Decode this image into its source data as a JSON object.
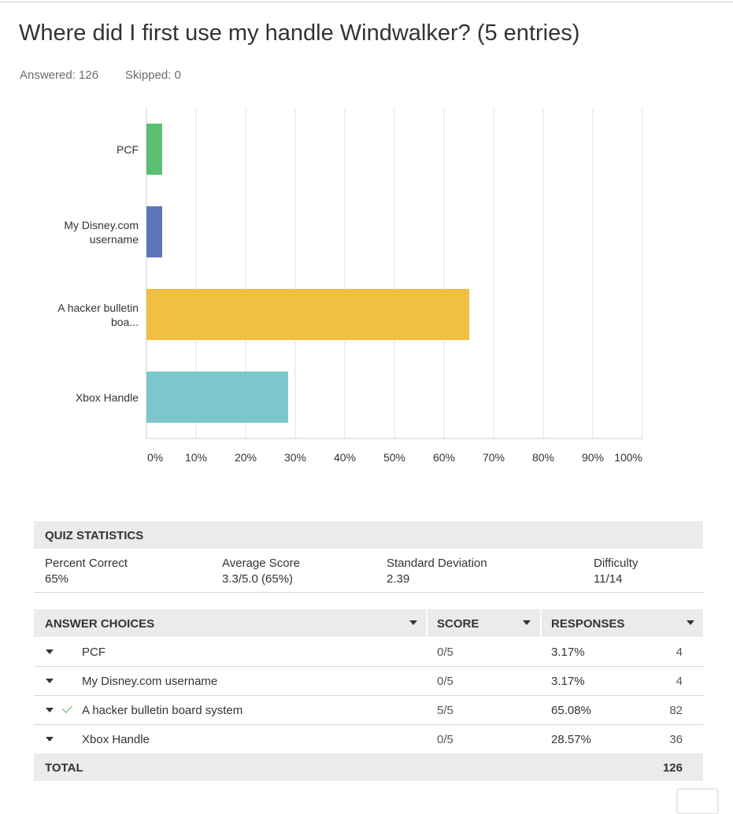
{
  "header": {
    "title": "Where did I first use my handle Windwalker? (5 entries)",
    "answered": "Answered: 126",
    "skipped": "Skipped: 0"
  },
  "chart_data": {
    "type": "hbar",
    "categories": [
      "PCF",
      "My Disney.com username",
      "A hacker bulletin boa...",
      "Xbox Handle"
    ],
    "values": [
      3.17,
      3.17,
      65.08,
      28.57
    ],
    "colors": [
      "#5bbf72",
      "#5a78b5",
      "#f0bf43",
      "#7ec6cb"
    ],
    "xlim": [
      0,
      100
    ],
    "xticks": [
      {
        "value": 0,
        "label": "0%"
      },
      {
        "value": 10,
        "label": "10%"
      },
      {
        "value": 20,
        "label": "20%"
      },
      {
        "value": 30,
        "label": "30%"
      },
      {
        "value": 40,
        "label": "40%"
      },
      {
        "value": 50,
        "label": "50%"
      },
      {
        "value": 60,
        "label": "60%"
      },
      {
        "value": 70,
        "label": "70%"
      },
      {
        "value": 80,
        "label": "80%"
      },
      {
        "value": 90,
        "label": "90%"
      },
      {
        "value": 100,
        "label": "100%"
      }
    ],
    "grid": true
  },
  "quiz_statistics": {
    "title": "QUIZ STATISTICS",
    "stats": [
      {
        "label": "Percent Correct",
        "value": "65%"
      },
      {
        "label": "Average Score",
        "value": "3.3/5.0 (65%)"
      },
      {
        "label": "Standard Deviation",
        "value": "2.39"
      },
      {
        "label": "Difficulty",
        "value": "11/14"
      }
    ]
  },
  "answer_table": {
    "headers": [
      "ANSWER CHOICES",
      "SCORE",
      "RESPONSES"
    ],
    "rows": [
      {
        "choice": "PCF",
        "score": "0/5",
        "percent": "3.17%",
        "count": 4,
        "correct": false
      },
      {
        "choice": "My Disney.com username",
        "score": "0/5",
        "percent": "3.17%",
        "count": 4,
        "correct": false
      },
      {
        "choice": "A hacker bulletin board system",
        "score": "5/5",
        "percent": "65.08%",
        "count": 82,
        "correct": true
      },
      {
        "choice": "Xbox Handle",
        "score": "0/5",
        "percent": "28.57%",
        "count": 36,
        "correct": false
      }
    ],
    "total_label": "TOTAL",
    "total": 126
  }
}
